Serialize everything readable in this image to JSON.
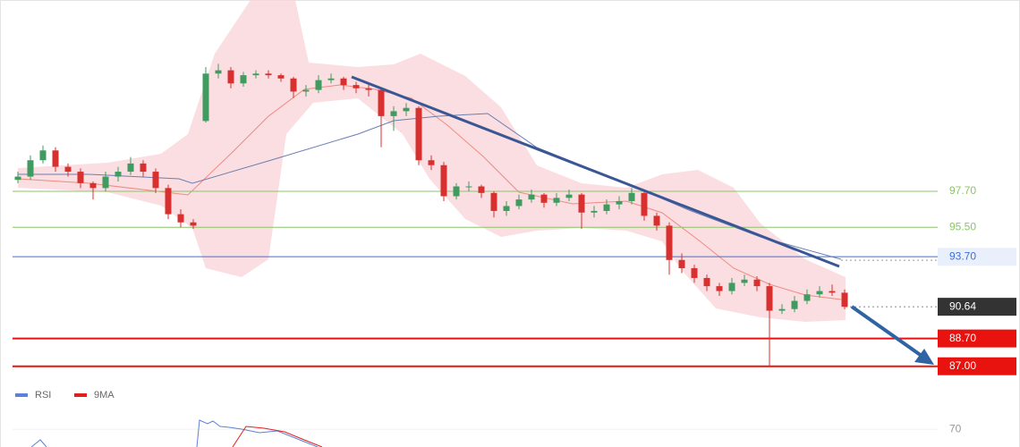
{
  "chart_data": {
    "type": "candlestick",
    "up_color": "#3f9b5f",
    "down_color": "#d8302f",
    "ylim": [
      86,
      109.4
    ],
    "candles": [
      [
        98.4,
        98.9,
        98.2,
        98.6
      ],
      [
        98.6,
        99.9,
        98.4,
        99.6
      ],
      [
        99.6,
        100.5,
        99.4,
        100.2
      ],
      [
        100.2,
        100.4,
        98.9,
        99.2
      ],
      [
        99.2,
        99.4,
        98.6,
        98.9
      ],
      [
        98.9,
        99.1,
        97.9,
        98.2
      ],
      [
        98.2,
        98.3,
        97.2,
        97.9
      ],
      [
        97.9,
        98.9,
        97.7,
        98.6
      ],
      [
        98.6,
        99.2,
        98.3,
        98.9
      ],
      [
        98.9,
        99.8,
        98.7,
        99.4
      ],
      [
        99.4,
        99.6,
        98.6,
        98.9
      ],
      [
        98.9,
        99.1,
        97.6,
        97.9
      ],
      [
        97.9,
        98.1,
        96.0,
        96.3
      ],
      [
        96.3,
        96.6,
        95.5,
        95.8
      ],
      [
        95.8,
        96.0,
        95.4,
        95.6
      ],
      [
        102.0,
        105.3,
        101.9,
        104.9
      ],
      [
        104.9,
        105.5,
        104.6,
        105.1
      ],
      [
        105.1,
        105.3,
        104.0,
        104.3
      ],
      [
        104.3,
        105.0,
        104.1,
        104.8
      ],
      [
        104.8,
        105.1,
        104.6,
        104.9
      ],
      [
        104.9,
        105.1,
        104.6,
        104.8
      ],
      [
        104.8,
        104.9,
        104.4,
        104.6
      ],
      [
        104.6,
        104.7,
        103.4,
        103.8
      ],
      [
        103.8,
        104.2,
        103.5,
        103.9
      ],
      [
        103.9,
        104.8,
        103.7,
        104.5
      ],
      [
        104.5,
        104.9,
        104.3,
        104.6
      ],
      [
        104.6,
        104.7,
        103.9,
        104.2
      ],
      [
        104.2,
        104.4,
        103.7,
        104.0
      ],
      [
        104.0,
        104.3,
        103.5,
        103.9
      ],
      [
        103.9,
        104.0,
        100.4,
        102.3
      ],
      [
        102.3,
        102.9,
        101.4,
        102.6
      ],
      [
        102.6,
        103.1,
        102.3,
        102.8
      ],
      [
        102.8,
        102.9,
        99.3,
        99.6
      ],
      [
        99.6,
        99.9,
        99.0,
        99.3
      ],
      [
        99.3,
        99.5,
        97.1,
        97.4
      ],
      [
        97.4,
        98.2,
        97.2,
        98.0
      ],
      [
        98.0,
        98.3,
        97.7,
        98.0
      ],
      [
        98.0,
        98.1,
        97.3,
        97.6
      ],
      [
        97.6,
        97.7,
        96.1,
        96.5
      ],
      [
        96.5,
        97.1,
        96.2,
        96.8
      ],
      [
        96.8,
        97.5,
        96.6,
        97.2
      ],
      [
        97.2,
        97.8,
        97.0,
        97.5
      ],
      [
        97.5,
        97.6,
        96.7,
        97.0
      ],
      [
        97.0,
        97.6,
        96.8,
        97.3
      ],
      [
        97.3,
        97.8,
        97.1,
        97.5
      ],
      [
        97.5,
        97.6,
        95.4,
        96.4
      ],
      [
        96.4,
        96.8,
        96.1,
        96.5
      ],
      [
        96.5,
        97.2,
        96.3,
        96.9
      ],
      [
        96.9,
        97.4,
        96.6,
        97.1
      ],
      [
        97.1,
        97.9,
        96.9,
        97.6
      ],
      [
        97.6,
        97.7,
        95.9,
        96.2
      ],
      [
        96.2,
        96.4,
        95.3,
        95.6
      ],
      [
        95.6,
        95.8,
        92.6,
        93.5
      ],
      [
        93.5,
        93.9,
        92.7,
        93.0
      ],
      [
        93.0,
        93.2,
        92.1,
        92.4
      ],
      [
        92.4,
        92.6,
        91.6,
        91.9
      ],
      [
        91.9,
        92.1,
        91.3,
        91.6
      ],
      [
        91.6,
        92.4,
        91.4,
        92.1
      ],
      [
        92.1,
        92.6,
        91.9,
        92.3
      ],
      [
        92.3,
        92.5,
        91.6,
        91.9
      ],
      [
        91.9,
        92.1,
        87.0,
        90.4
      ],
      [
        90.4,
        90.8,
        90.2,
        90.5
      ],
      [
        90.5,
        91.3,
        90.3,
        91.0
      ],
      [
        91.0,
        91.7,
        90.8,
        91.4
      ],
      [
        91.4,
        91.9,
        91.2,
        91.6
      ],
      [
        91.6,
        92.0,
        91.3,
        91.5
      ],
      [
        91.5,
        91.7,
        90.5,
        90.64
      ]
    ],
    "levels": [
      {
        "value": 97.7,
        "label": "97.70",
        "color": "#8cc46a",
        "boxed": false
      },
      {
        "value": 95.5,
        "label": "95.50",
        "color": "#8cc46a",
        "boxed": false
      },
      {
        "value": 93.7,
        "label": "93.70",
        "color": "#3d6fd8",
        "boxed": false
      },
      {
        "value": 90.64,
        "label": "90.64",
        "color": "#333333",
        "boxed": true
      },
      {
        "value": 88.7,
        "label": "88.70",
        "color": "#e8120f",
        "boxed": true
      },
      {
        "value": 87.0,
        "label": "87.00",
        "color": "#e8120f",
        "boxed": true
      }
    ],
    "rsi": {
      "ylim": [
        61,
        80
      ],
      "yticks": [
        70
      ],
      "series": [
        {
          "name": "RSI",
          "color": "#5b82d8"
        },
        {
          "name": "9MA",
          "color": "#e0201c"
        }
      ]
    }
  }
}
